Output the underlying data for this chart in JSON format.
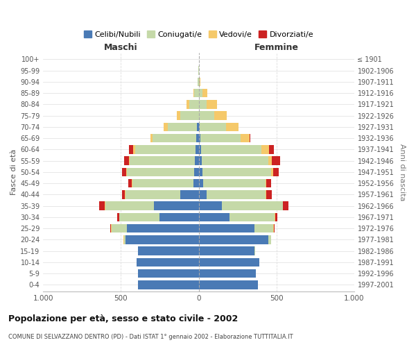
{
  "age_groups": [
    "0-4",
    "5-9",
    "10-14",
    "15-19",
    "20-24",
    "25-29",
    "30-34",
    "35-39",
    "40-44",
    "45-49",
    "50-54",
    "55-59",
    "60-64",
    "65-69",
    "70-74",
    "75-79",
    "80-84",
    "85-89",
    "90-94",
    "95-99",
    "100+"
  ],
  "birth_years": [
    "1997-2001",
    "1992-1996",
    "1987-1991",
    "1982-1986",
    "1977-1981",
    "1972-1976",
    "1967-1971",
    "1962-1966",
    "1957-1961",
    "1952-1956",
    "1947-1951",
    "1942-1946",
    "1937-1941",
    "1932-1936",
    "1927-1931",
    "1922-1926",
    "1917-1921",
    "1912-1916",
    "1907-1911",
    "1902-1906",
    "≤ 1901"
  ],
  "males": {
    "celibi": [
      390,
      390,
      400,
      390,
      470,
      460,
      250,
      290,
      120,
      35,
      30,
      25,
      20,
      15,
      10,
      0,
      0,
      0,
      0,
      0,
      0
    ],
    "coniugati": [
      0,
      0,
      0,
      2,
      10,
      100,
      260,
      310,
      350,
      390,
      430,
      420,
      390,
      280,
      190,
      120,
      60,
      30,
      5,
      2,
      0
    ],
    "vedovi": [
      0,
      0,
      0,
      0,
      2,
      3,
      3,
      5,
      5,
      5,
      5,
      5,
      10,
      15,
      25,
      20,
      20,
      5,
      2,
      0,
      0
    ],
    "divorziati": [
      0,
      0,
      0,
      0,
      2,
      5,
      10,
      35,
      20,
      25,
      30,
      30,
      30,
      0,
      0,
      0,
      0,
      0,
      0,
      0,
      0
    ]
  },
  "females": {
    "nubili": [
      380,
      370,
      390,
      360,
      450,
      360,
      200,
      150,
      50,
      30,
      25,
      20,
      15,
      10,
      5,
      0,
      0,
      0,
      0,
      0,
      0
    ],
    "coniugate": [
      0,
      0,
      0,
      2,
      15,
      120,
      290,
      390,
      380,
      400,
      440,
      430,
      390,
      260,
      170,
      100,
      50,
      25,
      5,
      2,
      0
    ],
    "vedove": [
      0,
      0,
      0,
      0,
      1,
      2,
      2,
      3,
      5,
      5,
      15,
      20,
      50,
      60,
      80,
      80,
      70,
      30,
      8,
      2,
      0
    ],
    "divorziate": [
      0,
      0,
      0,
      0,
      2,
      5,
      15,
      35,
      35,
      30,
      35,
      55,
      30,
      2,
      2,
      2,
      0,
      0,
      0,
      0,
      0
    ]
  },
  "colors": {
    "celibi": "#4a7ab5",
    "coniugati": "#c5d9a8",
    "vedovi": "#f5c96a",
    "divorziati": "#cc2222"
  },
  "title": "Popolazione per età, sesso e stato civile - 2002",
  "subtitle": "COMUNE DI SELVAZZANO DENTRO (PD) - Dati ISTAT 1° gennaio 2002 - Elaborazione TUTTITALIA.IT",
  "xlabel_left": "Maschi",
  "xlabel_right": "Femmine",
  "ylabel_left": "Fasce di età",
  "ylabel_right": "Anni di nascita",
  "xlim": 1000,
  "legend_labels": [
    "Celibi/Nubili",
    "Coniugati/e",
    "Vedovi/e",
    "Divorziati/e"
  ]
}
